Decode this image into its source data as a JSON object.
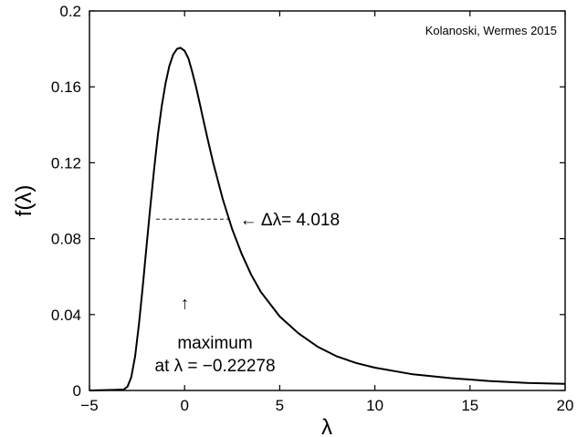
{
  "chart_data": {
    "type": "line",
    "title": "",
    "xlabel": "λ",
    "ylabel": "f(λ)",
    "xlim": [
      -5,
      20
    ],
    "ylim": [
      0,
      0.2
    ],
    "x_ticks": [
      -5,
      0,
      5,
      10,
      15,
      20
    ],
    "x_tick_labels": [
      "−5",
      "0",
      "5",
      "10",
      "15",
      "20"
    ],
    "y_ticks": [
      0,
      0.04,
      0.08,
      0.12,
      0.16,
      0.2
    ],
    "y_tick_labels": [
      "0",
      "0.04",
      "0.08",
      "0.12",
      "0.16",
      "0.2"
    ],
    "grid": false,
    "series": [
      {
        "x": [
          -5,
          -3.2,
          -3,
          -2.8,
          -2.6,
          -2.4,
          -2.2,
          -2,
          -1.8,
          -1.6,
          -1.4,
          -1.2,
          -1,
          -0.8,
          -0.6,
          -0.4,
          -0.22278,
          0,
          0.2,
          0.4,
          0.6,
          0.8,
          1,
          1.2,
          1.5,
          2,
          2.5,
          3,
          3.5,
          4,
          5,
          6,
          7,
          8,
          9,
          10,
          12,
          14,
          16,
          18,
          20
        ],
        "y": [
          0,
          0.0005,
          0.002,
          0.007,
          0.018,
          0.035,
          0.055,
          0.076,
          0.097,
          0.117,
          0.135,
          0.15,
          0.162,
          0.171,
          0.177,
          0.18,
          0.1806,
          0.179,
          0.175,
          0.168,
          0.16,
          0.151,
          0.142,
          0.133,
          0.12,
          0.101,
          0.085,
          0.072,
          0.061,
          0.052,
          0.039,
          0.03,
          0.023,
          0.018,
          0.0145,
          0.012,
          0.0085,
          0.0065,
          0.005,
          0.004,
          0.0035
        ]
      }
    ],
    "fwhm": {
      "level": 0.0903,
      "x_left": -1.5,
      "x_right": 2.518,
      "label": "← Δλ= 4.018"
    },
    "annotations": [
      {
        "text": "↑",
        "x": 0,
        "y": 0.043
      },
      {
        "text": "maximum",
        "x": 1.6,
        "y": 0.022
      },
      {
        "text": "at λ = −0.22278",
        "x": 1.6,
        "y": 0.01
      }
    ],
    "credit": "Kolanoski, Wermes 2015"
  }
}
